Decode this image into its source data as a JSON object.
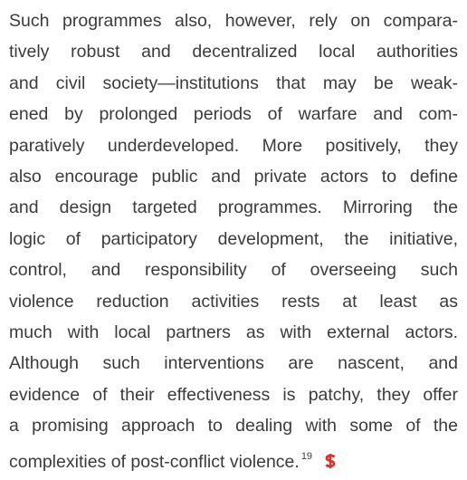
{
  "paragraph": {
    "lines": [
      "Such programmes also, however, rely on compara-",
      "tively robust and decentralized local authorities",
      "and civil society—institutions that may be weak-",
      "ened by prolonged periods of warfare and com-",
      "paratively underdeveloped. More positively, they",
      "also encourage public and private actors to define",
      "and design targeted programmes. Mirroring the",
      "logic of participatory development, the initiative,",
      "control, and responsibility of overseeing such",
      "violence reduction activities rests at least as",
      "much with local partners as with external actors.",
      "Although such interventions are nascent, and",
      "evidence of their effectiveness is patchy, they offer",
      "a promising approach to dealing with some of the",
      "complexities of post-conflict violence."
    ],
    "footnote": "19"
  }
}
